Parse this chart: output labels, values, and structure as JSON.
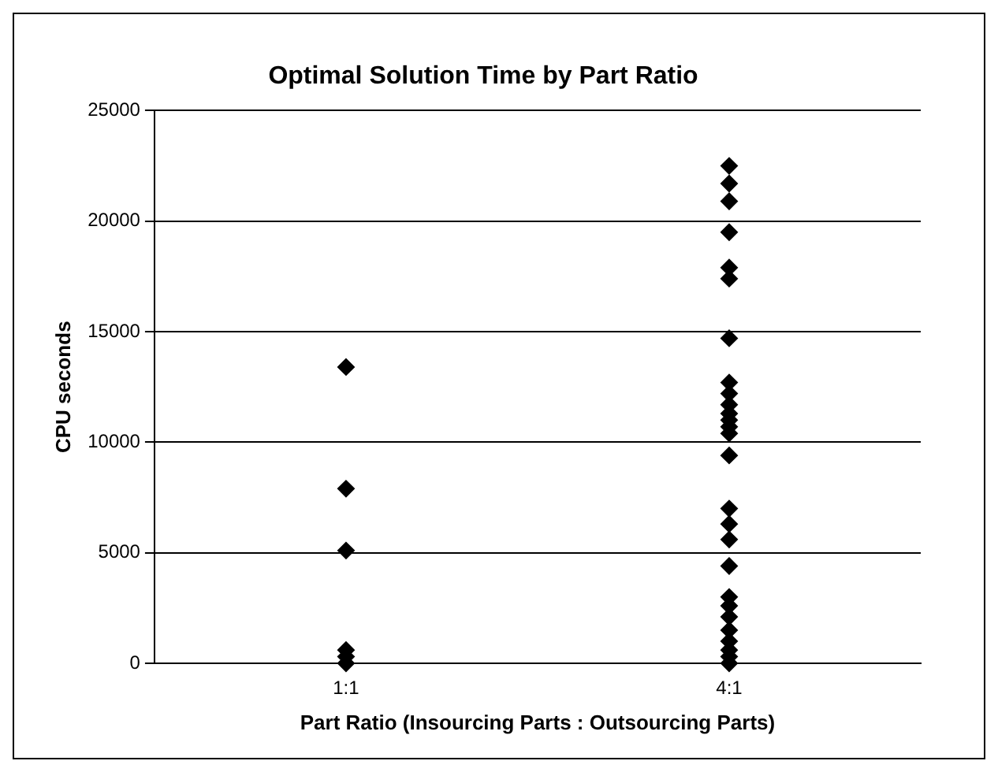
{
  "chart_data": {
    "type": "scatter",
    "title": "Optimal Solution Time by Part Ratio",
    "xlabel": "Part Ratio (Insourcing Parts : Outsourcing Parts)",
    "ylabel": "CPU seconds",
    "categories": [
      "1:1",
      "4:1"
    ],
    "series": [
      {
        "color": "#000000",
        "x": [
          "1:1",
          "1:1",
          "1:1",
          "1:1",
          "1:1",
          "1:1"
        ],
        "values": [
          13400,
          7900,
          5100,
          600,
          300,
          0
        ]
      },
      {
        "color": "#000000",
        "x": [
          "4:1",
          "4:1",
          "4:1",
          "4:1",
          "4:1",
          "4:1",
          "4:1",
          "4:1",
          "4:1",
          "4:1",
          "4:1",
          "4:1",
          "4:1",
          "4:1",
          "4:1",
          "4:1",
          "4:1",
          "4:1",
          "4:1",
          "4:1",
          "4:1",
          "4:1",
          "4:1",
          "4:1",
          "4:1",
          "4:1",
          "4:1"
        ],
        "values": [
          22500,
          21700,
          20900,
          19500,
          17900,
          17400,
          14700,
          12700,
          12200,
          11700,
          11300,
          11000,
          10700,
          10400,
          9400,
          7000,
          6300,
          5600,
          4400,
          3000,
          2600,
          2100,
          1500,
          1000,
          600,
          300,
          0
        ]
      }
    ],
    "ylim": [
      0,
      25000
    ],
    "yticks": [
      0,
      5000,
      10000,
      15000,
      20000,
      25000
    ],
    "grid": "y",
    "legend": false,
    "marker": "diamond"
  }
}
